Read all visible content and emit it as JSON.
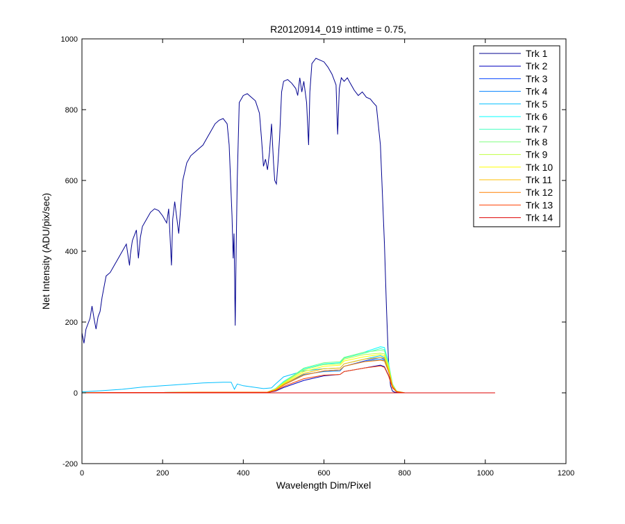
{
  "chart_data": {
    "type": "line",
    "title": "R20120914_019 inttime = 0.75,",
    "xlabel": "Wavelength Dim/Pixel",
    "ylabel": "Net Intensity (ADU/pix/sec)",
    "xlim": [
      0,
      1200
    ],
    "ylim": [
      -200,
      1000
    ],
    "xticks": [
      0,
      200,
      400,
      600,
      800,
      1000,
      1200
    ],
    "yticks": [
      -200,
      0,
      200,
      400,
      600,
      800,
      1000
    ],
    "xtick_labels": [
      "0",
      "200",
      "400",
      "600",
      "800",
      "1000",
      "1200"
    ],
    "ytick_labels": [
      "-200",
      "0",
      "200",
      "400",
      "600",
      "800",
      "1000"
    ],
    "grid": false,
    "legend_position": "top-right",
    "series": [
      {
        "name": "Trk 1",
        "color": "#00008f",
        "x": [
          0,
          5,
          10,
          20,
          25,
          30,
          35,
          40,
          45,
          50,
          60,
          70,
          80,
          90,
          100,
          110,
          118,
          120,
          125,
          135,
          140,
          145,
          150,
          160,
          170,
          180,
          190,
          200,
          210,
          215,
          222,
          225,
          230,
          240,
          250,
          260,
          270,
          280,
          290,
          300,
          310,
          320,
          330,
          340,
          350,
          360,
          365,
          372,
          375,
          377,
          380,
          382,
          385,
          390,
          395,
          400,
          410,
          420,
          430,
          440,
          445,
          450,
          455,
          460,
          465,
          470,
          475,
          478,
          482,
          486,
          490,
          495,
          500,
          510,
          520,
          530,
          535,
          540,
          545,
          550,
          557,
          562,
          565,
          570,
          580,
          590,
          600,
          610,
          620,
          630,
          634,
          638,
          643,
          650,
          658,
          665,
          675,
          685,
          695,
          705,
          715,
          722,
          730,
          740,
          745,
          750,
          755,
          760,
          765,
          770,
          775,
          780,
          790,
          800,
          850,
          900,
          950,
          1000,
          1024
        ],
        "values": [
          170,
          140,
          180,
          210,
          245,
          210,
          180,
          215,
          230,
          270,
          330,
          340,
          360,
          380,
          400,
          420,
          360,
          390,
          430,
          460,
          380,
          440,
          470,
          490,
          510,
          520,
          515,
          500,
          480,
          520,
          360,
          490,
          540,
          450,
          600,
          650,
          670,
          680,
          690,
          700,
          720,
          740,
          760,
          770,
          775,
          760,
          700,
          500,
          380,
          450,
          190,
          380,
          600,
          820,
          830,
          840,
          845,
          835,
          825,
          790,
          720,
          640,
          660,
          630,
          680,
          760,
          650,
          600,
          590,
          650,
          720,
          850,
          880,
          885,
          875,
          860,
          840,
          890,
          850,
          880,
          820,
          700,
          850,
          930,
          945,
          940,
          935,
          920,
          900,
          870,
          730,
          860,
          890,
          880,
          890,
          875,
          855,
          840,
          850,
          835,
          830,
          820,
          810,
          700,
          560,
          420,
          240,
          90,
          20,
          5,
          2,
          1,
          0,
          0,
          0,
          0,
          0,
          0,
          0
        ]
      },
      {
        "name": "Trk 2",
        "color": "#0000bf",
        "x": [
          0,
          100,
          200,
          300,
          400,
          460,
          480,
          500,
          550,
          600,
          640,
          650,
          700,
          740,
          750,
          760,
          770,
          780,
          800,
          900,
          1024
        ],
        "values": [
          0,
          0,
          1,
          1,
          1,
          1,
          5,
          15,
          35,
          48,
          52,
          60,
          70,
          78,
          74,
          50,
          15,
          3,
          0,
          0,
          0
        ]
      },
      {
        "name": "Trk 3",
        "color": "#0040ff",
        "x": [
          0,
          100,
          200,
          300,
          400,
          460,
          480,
          500,
          550,
          600,
          640,
          650,
          700,
          740,
          750,
          760,
          770,
          780,
          800,
          900,
          1024
        ],
        "values": [
          0,
          0,
          1,
          2,
          2,
          2,
          8,
          22,
          50,
          62,
          65,
          75,
          90,
          100,
          95,
          65,
          20,
          4,
          0,
          0,
          0
        ]
      },
      {
        "name": "Trk 4",
        "color": "#0080ff",
        "x": [
          0,
          100,
          200,
          300,
          400,
          460,
          480,
          500,
          550,
          600,
          640,
          650,
          700,
          740,
          750,
          760,
          770,
          780,
          800,
          900,
          1024
        ],
        "values": [
          0,
          1,
          1,
          2,
          2,
          2,
          10,
          25,
          52,
          60,
          62,
          75,
          88,
          95,
          92,
          62,
          20,
          4,
          0,
          0,
          0
        ]
      },
      {
        "name": "Trk 5",
        "color": "#00bfff",
        "x": [
          0,
          50,
          100,
          150,
          200,
          250,
          300,
          350,
          370,
          378,
          385,
          400,
          450,
          470,
          480,
          500,
          550,
          600,
          640,
          650,
          700,
          740,
          750,
          760,
          770,
          780,
          800,
          900,
          1024
        ],
        "values": [
          3,
          6,
          10,
          16,
          20,
          24,
          28,
          30,
          30,
          10,
          25,
          20,
          12,
          14,
          25,
          45,
          62,
          68,
          70,
          82,
          95,
          105,
          100,
          70,
          22,
          5,
          0,
          0,
          0
        ]
      },
      {
        "name": "Trk 6",
        "color": "#00ffff",
        "x": [
          0,
          100,
          200,
          300,
          400,
          460,
          480,
          500,
          550,
          600,
          640,
          650,
          700,
          740,
          750,
          760,
          770,
          780,
          800,
          900,
          1024
        ],
        "values": [
          0,
          1,
          1,
          2,
          2,
          2,
          12,
          32,
          68,
          82,
          85,
          100,
          115,
          130,
          128,
          85,
          25,
          5,
          0,
          0,
          0
        ]
      },
      {
        "name": "Trk 7",
        "color": "#40ffbf",
        "x": [
          0,
          100,
          200,
          300,
          400,
          460,
          480,
          500,
          550,
          600,
          640,
          650,
          700,
          740,
          750,
          760,
          770,
          780,
          800,
          900,
          1024
        ],
        "values": [
          0,
          1,
          1,
          2,
          2,
          2,
          12,
          30,
          65,
          80,
          82,
          98,
          112,
          125,
          122,
          82,
          24,
          5,
          0,
          0,
          0
        ]
      },
      {
        "name": "Trk 8",
        "color": "#80ff80",
        "x": [
          0,
          100,
          200,
          300,
          400,
          460,
          480,
          500,
          550,
          600,
          640,
          650,
          700,
          740,
          750,
          760,
          770,
          780,
          800,
          900,
          1024
        ],
        "values": [
          0,
          1,
          1,
          2,
          2,
          2,
          12,
          30,
          70,
          85,
          88,
          100,
          115,
          120,
          118,
          80,
          24,
          5,
          0,
          0,
          0
        ]
      },
      {
        "name": "Trk 9",
        "color": "#bfff40",
        "x": [
          0,
          100,
          200,
          300,
          400,
          460,
          480,
          500,
          550,
          600,
          640,
          650,
          700,
          740,
          750,
          760,
          770,
          780,
          800,
          900,
          1024
        ],
        "values": [
          0,
          1,
          1,
          2,
          2,
          2,
          10,
          28,
          65,
          80,
          82,
          95,
          108,
          112,
          110,
          75,
          22,
          5,
          0,
          0,
          0
        ]
      },
      {
        "name": "Trk 10",
        "color": "#ffff00",
        "x": [
          0,
          100,
          200,
          300,
          400,
          460,
          480,
          500,
          550,
          600,
          640,
          650,
          700,
          740,
          750,
          760,
          770,
          780,
          800,
          900,
          1024
        ],
        "values": [
          0,
          1,
          1,
          2,
          2,
          2,
          10,
          26,
          60,
          75,
          78,
          90,
          102,
          108,
          105,
          72,
          20,
          4,
          0,
          0,
          0
        ]
      },
      {
        "name": "Trk 11",
        "color": "#ffbf00",
        "x": [
          0,
          100,
          200,
          300,
          400,
          460,
          480,
          500,
          550,
          600,
          640,
          650,
          700,
          740,
          750,
          760,
          770,
          780,
          800,
          900,
          1024
        ],
        "values": [
          0,
          1,
          1,
          2,
          2,
          2,
          9,
          24,
          55,
          68,
          70,
          82,
          95,
          100,
          98,
          66,
          19,
          4,
          0,
          0,
          0
        ]
      },
      {
        "name": "Trk 12",
        "color": "#ff8000",
        "x": [
          0,
          100,
          200,
          300,
          400,
          460,
          480,
          500,
          550,
          600,
          640,
          650,
          700,
          740,
          750,
          760,
          770,
          780,
          800,
          900,
          1024
        ],
        "values": [
          0,
          1,
          1,
          2,
          2,
          2,
          8,
          22,
          50,
          62,
          65,
          75,
          88,
          92,
          90,
          60,
          18,
          4,
          0,
          0,
          0
        ]
      },
      {
        "name": "Trk 13",
        "color": "#ff4000",
        "x": [
          0,
          100,
          200,
          300,
          400,
          460,
          480,
          500,
          550,
          600,
          640,
          650,
          700,
          740,
          750,
          760,
          770,
          780,
          800,
          900,
          1024
        ],
        "values": [
          0,
          1,
          1,
          1,
          1,
          1,
          6,
          18,
          40,
          50,
          52,
          60,
          70,
          76,
          72,
          48,
          14,
          3,
          0,
          0,
          0
        ]
      },
      {
        "name": "Trk 14",
        "color": "#df0000",
        "x": [
          0,
          100,
          200,
          300,
          400,
          500,
          600,
          700,
          800,
          900,
          1024
        ],
        "values": [
          0,
          0,
          0,
          0,
          0,
          0,
          0,
          0,
          0,
          0,
          0
        ]
      }
    ]
  }
}
